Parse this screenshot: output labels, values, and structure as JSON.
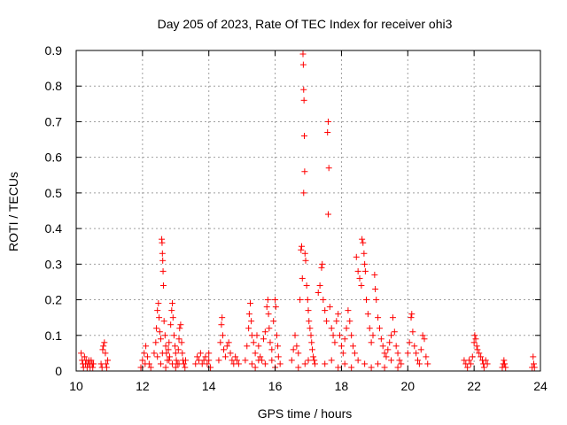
{
  "chart_data": {
    "type": "scatter",
    "title": "Day 205 of 2023, Rate Of TEC Index for receiver ohi3",
    "xlabel": "GPS time / hours",
    "ylabel": "ROTI / TECUs",
    "xlim": [
      10,
      24
    ],
    "ylim": [
      0,
      0.9
    ],
    "xticks": [
      10,
      12,
      14,
      16,
      18,
      20,
      22,
      24
    ],
    "yticks": [
      0,
      0.1,
      0.2,
      0.3,
      0.4,
      0.5,
      0.6,
      0.7,
      0.8,
      0.9
    ],
    "x_tick_labels": [
      "10",
      "12",
      "14",
      "16",
      "18",
      "20",
      "22",
      "24"
    ],
    "y_tick_labels": [
      "0",
      "0.1",
      "0.2",
      "0.3",
      "0.4",
      "0.5",
      "0.6",
      "0.7",
      "0.8",
      "0.9"
    ],
    "grid": true,
    "marker": "+",
    "marker_color": "#ff0000",
    "series": [
      {
        "points": [
          [
            10.15,
            0.05
          ],
          [
            10.18,
            0.03
          ],
          [
            10.2,
            0.02
          ],
          [
            10.22,
            0.01
          ],
          [
            10.25,
            0.04
          ],
          [
            10.28,
            0.02
          ],
          [
            10.3,
            0.03
          ],
          [
            10.33,
            0.01
          ],
          [
            10.35,
            0.02
          ],
          [
            10.38,
            0.03
          ],
          [
            10.4,
            0.02
          ],
          [
            10.42,
            0.01
          ],
          [
            10.45,
            0.03
          ],
          [
            10.48,
            0.02
          ],
          [
            10.5,
            0.01
          ],
          [
            10.52,
            0.02
          ],
          [
            10.75,
            0.02
          ],
          [
            10.78,
            0.01
          ],
          [
            10.8,
            0.06
          ],
          [
            10.82,
            0.07
          ],
          [
            10.85,
            0.08
          ],
          [
            10.88,
            0.05
          ],
          [
            10.9,
            0.02
          ],
          [
            10.92,
            0.01
          ],
          [
            10.95,
            0.03
          ],
          [
            11.95,
            0.01
          ],
          [
            12.0,
            0.03
          ],
          [
            12.05,
            0.05
          ],
          [
            12.08,
            0.02
          ],
          [
            12.1,
            0.07
          ],
          [
            12.15,
            0.04
          ],
          [
            12.2,
            0.02
          ],
          [
            12.25,
            0.01
          ],
          [
            12.35,
            0.05
          ],
          [
            12.4,
            0.08
          ],
          [
            12.42,
            0.12
          ],
          [
            12.45,
            0.17
          ],
          [
            12.48,
            0.19
          ],
          [
            12.5,
            0.15
          ],
          [
            12.52,
            0.11
          ],
          [
            12.55,
            0.09
          ],
          [
            12.58,
            0.37
          ],
          [
            12.59,
            0.36
          ],
          [
            12.6,
            0.33
          ],
          [
            12.61,
            0.31
          ],
          [
            12.62,
            0.28
          ],
          [
            12.63,
            0.24
          ],
          [
            12.65,
            0.14
          ],
          [
            12.68,
            0.1
          ],
          [
            12.7,
            0.07
          ],
          [
            12.72,
            0.05
          ],
          [
            12.75,
            0.03
          ],
          [
            12.78,
            0.06
          ],
          [
            12.8,
            0.08
          ],
          [
            12.82,
            0.04
          ],
          [
            12.85,
            0.13
          ],
          [
            12.88,
            0.17
          ],
          [
            12.9,
            0.19
          ],
          [
            12.92,
            0.15
          ],
          [
            12.95,
            0.1
          ],
          [
            12.98,
            0.07
          ],
          [
            13.0,
            0.05
          ],
          [
            13.02,
            0.03
          ],
          [
            13.05,
            0.02
          ],
          [
            13.08,
            0.06
          ],
          [
            13.1,
            0.09
          ],
          [
            13.12,
            0.12
          ],
          [
            13.15,
            0.13
          ],
          [
            13.18,
            0.08
          ],
          [
            13.2,
            0.05
          ],
          [
            13.22,
            0.03
          ],
          [
            13.25,
            0.02
          ],
          [
            13.28,
            0.01
          ],
          [
            13.3,
            0.03
          ],
          [
            12.45,
            0.04
          ],
          [
            12.55,
            0.02
          ],
          [
            12.7,
            0.01
          ],
          [
            12.9,
            0.02
          ],
          [
            13.0,
            0.01
          ],
          [
            13.1,
            0.02
          ],
          [
            12.6,
            0.05
          ],
          [
            12.8,
            0.03
          ],
          [
            13.6,
            0.02
          ],
          [
            13.65,
            0.04
          ],
          [
            13.7,
            0.03
          ],
          [
            13.75,
            0.05
          ],
          [
            13.8,
            0.02
          ],
          [
            13.85,
            0.03
          ],
          [
            13.9,
            0.04
          ],
          [
            13.95,
            0.02
          ],
          [
            14.0,
            0.03
          ],
          [
            14.05,
            0.01
          ],
          [
            14.0,
            0.05
          ],
          [
            14.3,
            0.03
          ],
          [
            14.35,
            0.08
          ],
          [
            14.38,
            0.13
          ],
          [
            14.4,
            0.15
          ],
          [
            14.42,
            0.1
          ],
          [
            14.45,
            0.06
          ],
          [
            14.5,
            0.04
          ],
          [
            14.55,
            0.07
          ],
          [
            14.6,
            0.08
          ],
          [
            14.65,
            0.05
          ],
          [
            14.7,
            0.03
          ],
          [
            14.75,
            0.02
          ],
          [
            14.8,
            0.04
          ],
          [
            14.85,
            0.03
          ],
          [
            14.9,
            0.02
          ],
          [
            15.1,
            0.03
          ],
          [
            15.15,
            0.07
          ],
          [
            15.2,
            0.12
          ],
          [
            15.22,
            0.16
          ],
          [
            15.25,
            0.19
          ],
          [
            15.28,
            0.14
          ],
          [
            15.3,
            0.1
          ],
          [
            15.35,
            0.08
          ],
          [
            15.4,
            0.05
          ],
          [
            15.45,
            0.1
          ],
          [
            15.5,
            0.07
          ],
          [
            15.55,
            0.04
          ],
          [
            15.6,
            0.03
          ],
          [
            15.65,
            0.09
          ],
          [
            15.7,
            0.11
          ],
          [
            15.75,
            0.18
          ],
          [
            15.78,
            0.2
          ],
          [
            15.8,
            0.16
          ],
          [
            15.82,
            0.12
          ],
          [
            15.85,
            0.08
          ],
          [
            15.9,
            0.06
          ],
          [
            15.95,
            0.14
          ],
          [
            16.0,
            0.2
          ],
          [
            16.02,
            0.18
          ],
          [
            16.05,
            0.1
          ],
          [
            16.08,
            0.07
          ],
          [
            16.1,
            0.04
          ],
          [
            16.15,
            0.02
          ],
          [
            15.3,
            0.02
          ],
          [
            15.5,
            0.03
          ],
          [
            15.7,
            0.02
          ],
          [
            15.9,
            0.03
          ],
          [
            16.0,
            0.01
          ],
          [
            15.4,
            0.01
          ],
          [
            16.5,
            0.03
          ],
          [
            16.55,
            0.06
          ],
          [
            16.6,
            0.1
          ],
          [
            16.65,
            0.07
          ],
          [
            16.7,
            0.05
          ],
          [
            16.75,
            0.2
          ],
          [
            16.78,
            0.34
          ],
          [
            16.8,
            0.35
          ],
          [
            16.82,
            0.26
          ],
          [
            16.84,
            0.89
          ],
          [
            16.85,
            0.86
          ],
          [
            16.86,
            0.79
          ],
          [
            16.87,
            0.76
          ],
          [
            16.88,
            0.66
          ],
          [
            16.89,
            0.56
          ],
          [
            16.86,
            0.5
          ],
          [
            16.9,
            0.33
          ],
          [
            16.92,
            0.31
          ],
          [
            16.95,
            0.24
          ],
          [
            16.98,
            0.2
          ],
          [
            17.0,
            0.17
          ],
          [
            17.02,
            0.14
          ],
          [
            17.05,
            0.12
          ],
          [
            17.08,
            0.1
          ],
          [
            17.1,
            0.08
          ],
          [
            17.12,
            0.06
          ],
          [
            17.15,
            0.04
          ],
          [
            17.18,
            0.03
          ],
          [
            17.2,
            0.02
          ],
          [
            16.7,
            0.01
          ],
          [
            16.9,
            0.02
          ],
          [
            17.0,
            0.03
          ],
          [
            17.3,
            0.22
          ],
          [
            17.35,
            0.24
          ],
          [
            17.4,
            0.29
          ],
          [
            17.42,
            0.3
          ],
          [
            17.45,
            0.2
          ],
          [
            17.5,
            0.17
          ],
          [
            17.55,
            0.14
          ],
          [
            17.58,
            0.67
          ],
          [
            17.6,
            0.7
          ],
          [
            17.62,
            0.57
          ],
          [
            17.6,
            0.44
          ],
          [
            17.65,
            0.18
          ],
          [
            17.7,
            0.12
          ],
          [
            17.75,
            0.1
          ],
          [
            17.8,
            0.08
          ],
          [
            17.85,
            0.14
          ],
          [
            17.9,
            0.16
          ],
          [
            17.95,
            0.1
          ],
          [
            18.0,
            0.07
          ],
          [
            18.05,
            0.05
          ],
          [
            18.1,
            0.09
          ],
          [
            18.15,
            0.12
          ],
          [
            18.2,
            0.17
          ],
          [
            18.25,
            0.14
          ],
          [
            18.3,
            0.1
          ],
          [
            18.35,
            0.07
          ],
          [
            18.4,
            0.05
          ],
          [
            18.45,
            0.32
          ],
          [
            18.5,
            0.28
          ],
          [
            18.55,
            0.26
          ],
          [
            18.6,
            0.24
          ],
          [
            18.62,
            0.37
          ],
          [
            18.65,
            0.36
          ],
          [
            18.68,
            0.33
          ],
          [
            18.7,
            0.3
          ],
          [
            18.72,
            0.28
          ],
          [
            18.75,
            0.2
          ],
          [
            18.8,
            0.16
          ],
          [
            18.85,
            0.12
          ],
          [
            18.9,
            0.08
          ],
          [
            18.95,
            0.1
          ],
          [
            19.0,
            0.27
          ],
          [
            19.02,
            0.23
          ],
          [
            19.05,
            0.2
          ],
          [
            19.1,
            0.15
          ],
          [
            19.15,
            0.12
          ],
          [
            19.2,
            0.09
          ],
          [
            19.25,
            0.07
          ],
          [
            19.3,
            0.05
          ],
          [
            19.35,
            0.04
          ],
          [
            19.4,
            0.06
          ],
          [
            19.45,
            0.08
          ],
          [
            19.5,
            0.1
          ],
          [
            19.55,
            0.15
          ],
          [
            19.6,
            0.11
          ],
          [
            19.65,
            0.07
          ],
          [
            19.7,
            0.05
          ],
          [
            19.75,
            0.03
          ],
          [
            19.8,
            0.02
          ],
          [
            17.5,
            0.02
          ],
          [
            17.7,
            0.03
          ],
          [
            17.9,
            0.01
          ],
          [
            18.1,
            0.02
          ],
          [
            18.3,
            0.01
          ],
          [
            18.5,
            0.03
          ],
          [
            18.7,
            0.02
          ],
          [
            18.9,
            0.01
          ],
          [
            19.1,
            0.02
          ],
          [
            19.3,
            0.01
          ],
          [
            19.5,
            0.03
          ],
          [
            19.7,
            0.01
          ],
          [
            20.0,
            0.05
          ],
          [
            20.05,
            0.08
          ],
          [
            20.1,
            0.15
          ],
          [
            20.12,
            0.16
          ],
          [
            20.15,
            0.11
          ],
          [
            20.2,
            0.07
          ],
          [
            20.25,
            0.05
          ],
          [
            20.3,
            0.03
          ],
          [
            20.35,
            0.02
          ],
          [
            20.4,
            0.06
          ],
          [
            20.45,
            0.1
          ],
          [
            20.5,
            0.09
          ],
          [
            20.55,
            0.04
          ],
          [
            20.6,
            0.02
          ],
          [
            21.7,
            0.03
          ],
          [
            21.75,
            0.02
          ],
          [
            21.8,
            0.01
          ],
          [
            21.85,
            0.03
          ],
          [
            21.9,
            0.02
          ],
          [
            21.95,
            0.04
          ],
          [
            22.0,
            0.08
          ],
          [
            22.02,
            0.1
          ],
          [
            22.05,
            0.09
          ],
          [
            22.08,
            0.07
          ],
          [
            22.1,
            0.06
          ],
          [
            22.15,
            0.05
          ],
          [
            22.2,
            0.04
          ],
          [
            22.25,
            0.03
          ],
          [
            22.28,
            0.02
          ],
          [
            22.3,
            0.01
          ],
          [
            22.35,
            0.03
          ],
          [
            22.4,
            0.02
          ],
          [
            22.85,
            0.01
          ],
          [
            22.88,
            0.02
          ],
          [
            22.9,
            0.03
          ],
          [
            22.92,
            0.02
          ],
          [
            22.95,
            0.01
          ],
          [
            23.75,
            0.01
          ],
          [
            23.78,
            0.04
          ],
          [
            23.8,
            0.02
          ],
          [
            23.82,
            0.01
          ]
        ]
      }
    ]
  }
}
